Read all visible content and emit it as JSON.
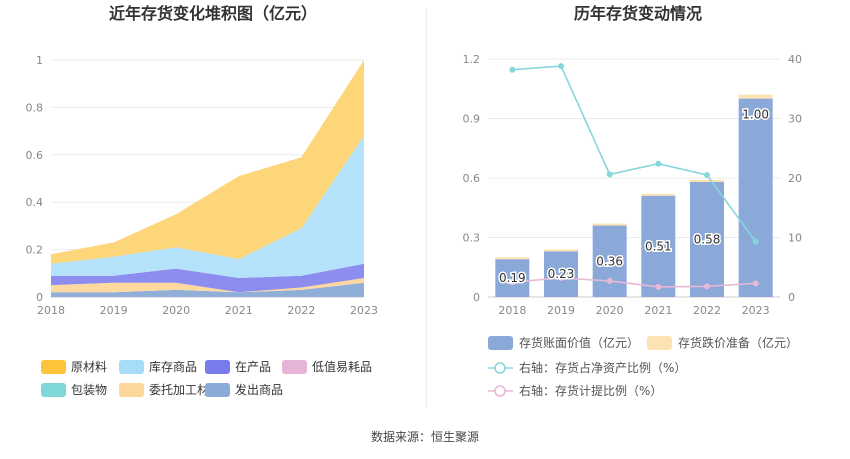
{
  "source": "数据来源：恒生聚源",
  "chart_data": [
    {
      "type": "area",
      "stacked": true,
      "title": "近年存货变化堆积图（亿元）",
      "categories": [
        "2018",
        "2019",
        "2020",
        "2021",
        "2022",
        "2023"
      ],
      "ylim": [
        0,
        1
      ],
      "yticks": [
        "0",
        "0.2",
        "0.4",
        "0.6",
        "0.8",
        "1"
      ],
      "series": [
        {
          "name": "发出商品",
          "color": "#8fafd9",
          "values": [
            0.02,
            0.02,
            0.03,
            0.02,
            0.03,
            0.06
          ]
        },
        {
          "name": "委托加工材料",
          "color": "#fdd9a0",
          "values": [
            0.03,
            0.04,
            0.03,
            0.0,
            0.01,
            0.02
          ]
        },
        {
          "name": "低值易耗品",
          "color": "#e9b9da",
          "values": [
            0.0,
            0.0,
            0.0,
            0.0,
            0.0,
            0.0
          ]
        },
        {
          "name": "在产品",
          "color": "#8d8df0",
          "values": [
            0.04,
            0.03,
            0.06,
            0.06,
            0.05,
            0.06
          ]
        },
        {
          "name": "包装物",
          "color": "#7fd6d6",
          "values": [
            0.0,
            0.0,
            0.0,
            0.0,
            0.0,
            0.0
          ]
        },
        {
          "name": "库存商品",
          "color": "#b4e2fa",
          "values": [
            0.05,
            0.08,
            0.09,
            0.08,
            0.2,
            0.54
          ]
        },
        {
          "name": "原材料",
          "color": "#fdd67a",
          "values": [
            0.04,
            0.06,
            0.14,
            0.35,
            0.3,
            0.32
          ]
        }
      ],
      "legend": [
        {
          "name": "原材料",
          "color": "#fdc43c"
        },
        {
          "name": "库存商品",
          "color": "#a7dcf8"
        },
        {
          "name": "在产品",
          "color": "#7a7aef"
        },
        {
          "name": "低值易耗品",
          "color": "#e6b4d6"
        },
        {
          "name": "包装物",
          "color": "#7fd8d8"
        },
        {
          "name": "委托加工材料",
          "color": "#fdd79a"
        },
        {
          "name": "发出商品",
          "color": "#8aaad8"
        }
      ]
    },
    {
      "type": "bar",
      "title": "历年存货变动情况",
      "categories": [
        "2018",
        "2019",
        "2020",
        "2021",
        "2022",
        "2023"
      ],
      "ylim": [
        0,
        1.2
      ],
      "yticks": [
        "0",
        "0.3",
        "0.6",
        "0.9",
        "1.2"
      ],
      "y2lim": [
        0,
        40
      ],
      "y2ticks": [
        "0",
        "10",
        "20",
        "30",
        "40"
      ],
      "series": [
        {
          "name": "存货账面价值（亿元）",
          "axis": "left",
          "color": "#8aa9d9",
          "values": [
            0.19,
            0.23,
            0.36,
            0.51,
            0.58,
            1.0
          ],
          "labels": [
            "0.19",
            "0.23",
            "0.36",
            "0.51",
            "0.58",
            "1.00"
          ]
        },
        {
          "name": "存货跌价准备（亿元）",
          "axis": "left",
          "color": "#fde3b3",
          "values": [
            0.01,
            0.01,
            0.01,
            0.01,
            0.01,
            0.02
          ]
        },
        {
          "name": "右轴：存货占净资产比例（%）",
          "axis": "right",
          "type": "line",
          "color": "#86d7db",
          "values": [
            38.2,
            38.8,
            20.6,
            22.4,
            20.5,
            9.3
          ]
        },
        {
          "name": "右轴：存货计提比例（%）",
          "axis": "right",
          "type": "line",
          "color": "#e8b8d8",
          "values": [
            2.5,
            3.2,
            2.7,
            1.7,
            1.8,
            2.3
          ]
        }
      ]
    }
  ]
}
